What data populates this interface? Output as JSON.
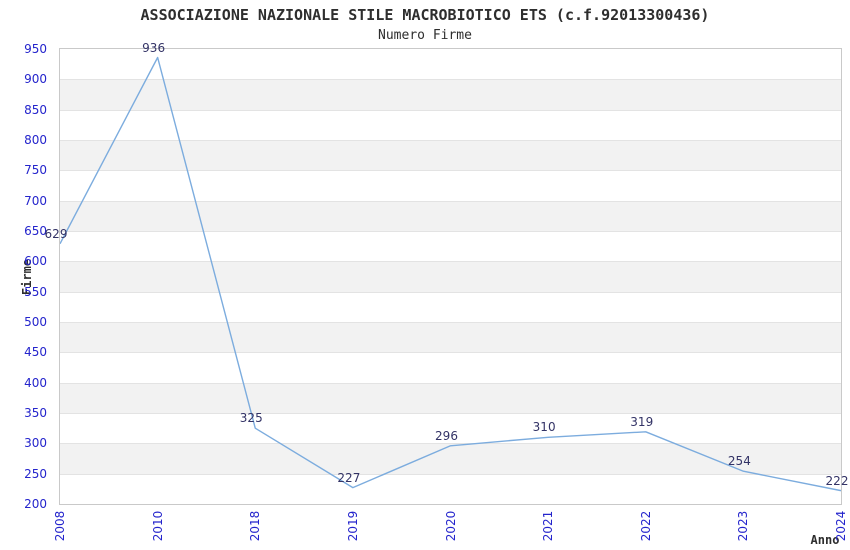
{
  "chart_data": {
    "type": "line",
    "title": "ASSOCIAZIONE NAZIONALE STILE MACROBIOTICO ETS (c.f.92013300436)",
    "subtitle": "Numero Firme",
    "xlabel": "Anno",
    "ylabel": "Firme",
    "categories": [
      "2008",
      "2010",
      "2018",
      "2019",
      "2020",
      "2021",
      "2022",
      "2023",
      "2024"
    ],
    "series": [
      {
        "name": "Numero Firme",
        "values": [
          629,
          936,
          325,
          227,
          296,
          310,
          319,
          254,
          222
        ]
      }
    ],
    "point_labels": [
      "629",
      "936",
      "325",
      "227",
      "296",
      "310",
      "319",
      "254",
      "222"
    ],
    "ylim": [
      200,
      950
    ],
    "ytick_step": 50,
    "yticks": [
      950,
      900,
      850,
      800,
      750,
      700,
      650,
      600,
      550,
      500,
      450,
      400,
      350,
      300,
      250,
      200
    ],
    "grid": "alternating horizontal bands every 50 units",
    "legend": "none",
    "colors": {
      "line": "#7CACDE",
      "axis_tick_labels": "#2424CC",
      "point_labels": "#333366",
      "band_gray": "#F2F2F2",
      "band_white": "#FFFFFF",
      "gridline": "#E3E3E3",
      "plot_border": "#C9C9C9",
      "text": "#2E2E2E",
      "background": "#FFFFFF"
    }
  }
}
